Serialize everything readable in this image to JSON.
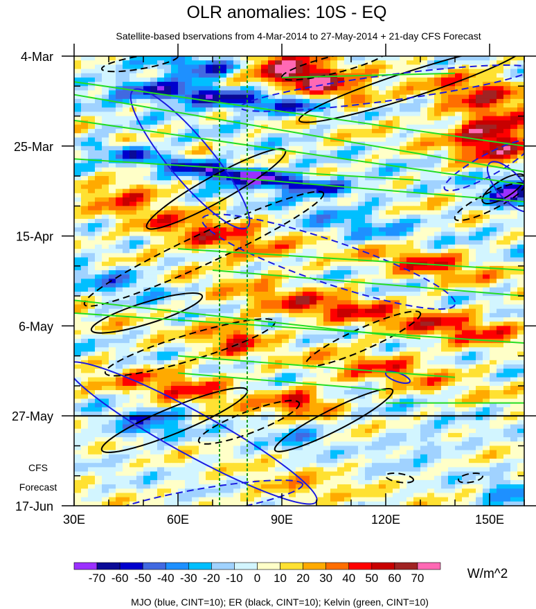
{
  "chart_data": {
    "type": "heatmap",
    "title": "OLR anomalies: 10S - EQ",
    "subtitle": "Satellite-based bservations from 4-Mar-2014 to 27-May-2014 + 21-day CFS Forecast",
    "x_range_deg_east": [
      30,
      160
    ],
    "x_ticks": [
      {
        "value": 30,
        "label": "30E"
      },
      {
        "value": 60,
        "label": "60E"
      },
      {
        "value": 90,
        "label": "90E"
      },
      {
        "value": 120,
        "label": "120E"
      },
      {
        "value": 150,
        "label": "150E"
      }
    ],
    "y_range_days": [
      0,
      105
    ],
    "y_ticks": [
      {
        "value": 0,
        "label": "4-Mar"
      },
      {
        "value": 21,
        "label": "25-Mar"
      },
      {
        "value": 42,
        "label": "15-Apr"
      },
      {
        "value": 63,
        "label": "6-May"
      },
      {
        "value": 84,
        "label": "27-May"
      },
      {
        "value": 105,
        "label": "17-Jun"
      }
    ],
    "forecast_start_day": 84,
    "forecast_label": [
      "CFS",
      "Forecast"
    ],
    "reference_longitudes": [
      72,
      80
    ],
    "levels": [
      -70,
      -60,
      -50,
      -40,
      -30,
      -20,
      -10,
      0,
      10,
      20,
      30,
      40,
      50,
      60,
      70
    ],
    "level_labels": [
      "-70",
      "-60",
      "-50",
      "-40",
      "-30",
      "-20",
      "-10",
      "0",
      "10",
      "20",
      "30",
      "40",
      "50",
      "60",
      "70"
    ],
    "colors": [
      "#9b30ff",
      "#0a0a96",
      "#0000cd",
      "#4169e1",
      "#1e90ff",
      "#00bfff",
      "#a0d2ff",
      "#d2f5ff",
      "#ffffc8",
      "#ffe132",
      "#ffaa00",
      "#ff6e00",
      "#ff0000",
      "#c80000",
      "#a02323",
      "#ff69b4"
    ],
    "units": "W/m^2",
    "footer": "MJO (blue, CINT=10); ER (black, CINT=10); Kelvin (green, CINT=10)",
    "anomaly_blobs": [
      {
        "lon": 58,
        "day": 8,
        "amp": -65,
        "slon": 14,
        "sday": 2.2,
        "tilt": 4
      },
      {
        "lon": 88,
        "day": 11,
        "amp": -45,
        "slon": 12,
        "sday": 2,
        "tilt": 4
      },
      {
        "lon": 75,
        "day": 27,
        "amp": -75,
        "slon": 10,
        "sday": 2.2,
        "tilt": 5
      },
      {
        "lon": 45,
        "day": 22,
        "amp": -45,
        "slon": 8,
        "sday": 2,
        "tilt": 4
      },
      {
        "lon": 100,
        "day": 30,
        "amp": -40,
        "slon": 12,
        "sday": 2,
        "tilt": 4
      },
      {
        "lon": 155,
        "day": 32,
        "amp": -55,
        "slon": 6,
        "sday": 3,
        "tilt": 0
      },
      {
        "lon": 70,
        "day": 2,
        "amp": -50,
        "slon": 10,
        "sday": 2,
        "tilt": 0
      },
      {
        "lon": 100,
        "day": 6,
        "amp": 65,
        "slon": 8,
        "sday": 3.5,
        "tilt": 2
      },
      {
        "lon": 85,
        "day": 3,
        "amp": 45,
        "slon": 10,
        "sday": 3,
        "tilt": 0
      },
      {
        "lon": 150,
        "day": 18,
        "amp": 70,
        "slon": 8,
        "sday": 4,
        "tilt": 0
      },
      {
        "lon": 145,
        "day": 8,
        "amp": 35,
        "slon": 10,
        "sday": 4,
        "tilt": 0
      },
      {
        "lon": 68,
        "day": 42,
        "amp": 45,
        "slon": 12,
        "sday": 4,
        "tilt": 3
      },
      {
        "lon": 45,
        "day": 31,
        "amp": 30,
        "slon": 8,
        "sday": 3,
        "tilt": 0
      },
      {
        "lon": 100,
        "day": 58,
        "amp": 40,
        "slon": 14,
        "sday": 3,
        "tilt": 3
      },
      {
        "lon": 130,
        "day": 48,
        "amp": 35,
        "slon": 10,
        "sday": 3,
        "tilt": 2
      },
      {
        "lon": 140,
        "day": 63,
        "amp": 35,
        "slon": 12,
        "sday": 3,
        "tilt": 2
      },
      {
        "lon": 75,
        "day": 65,
        "amp": 40,
        "slon": 6,
        "sday": 3,
        "tilt": 0
      },
      {
        "lon": 95,
        "day": 80,
        "amp": 55,
        "slon": 6,
        "sday": 2,
        "tilt": 0
      },
      {
        "lon": 60,
        "day": 76,
        "amp": 35,
        "slon": 12,
        "sday": 3,
        "tilt": 2
      },
      {
        "lon": 120,
        "day": 72,
        "amp": 30,
        "slon": 12,
        "sday": 3,
        "tilt": 2
      },
      {
        "lon": 50,
        "day": 86,
        "amp": -45,
        "slon": 8,
        "sday": 2.5,
        "tilt": 0
      },
      {
        "lon": 95,
        "day": 88,
        "amp": -35,
        "slon": 6,
        "sday": 2,
        "tilt": 0
      },
      {
        "lon": 130,
        "day": 90,
        "amp": -30,
        "slon": 8,
        "sday": 2,
        "tilt": 0
      },
      {
        "lon": 92,
        "day": 101,
        "amp": 25,
        "slon": 10,
        "sday": 3,
        "tilt": 0
      },
      {
        "lon": 155,
        "day": 103,
        "amp": -40,
        "slon": 5,
        "sday": 3,
        "tilt": 0
      },
      {
        "lon": 40,
        "day": 51,
        "amp": -30,
        "slon": 8,
        "sday": 3,
        "tilt": 2
      },
      {
        "lon": 110,
        "day": 40,
        "amp": -25,
        "slon": 10,
        "sday": 3,
        "tilt": 2
      }
    ],
    "contours": {
      "er_solid": [
        [
          95,
          15,
          160,
          -2,
          3
        ],
        [
          51,
          40,
          91,
          22,
          3
        ],
        [
          35,
          64,
          67,
          56,
          2.5
        ],
        [
          38,
          92,
          80,
          78,
          3
        ],
        [
          88,
          92,
          122,
          78,
          2.5
        ],
        [
          148,
          34,
          160,
          28,
          2
        ]
      ],
      "er_dashed": [
        [
          33,
          58,
          102,
          32,
          3.5
        ],
        [
          39,
          74,
          88,
          62,
          3
        ],
        [
          97,
          72,
          130,
          60,
          2.5
        ],
        [
          66,
          90,
          95,
          81,
          2.5
        ],
        [
          140,
          38,
          160,
          30,
          2
        ],
        [
          38,
          3,
          60,
          0,
          1.5
        ],
        [
          90,
          5,
          120,
          -1,
          2
        ],
        [
          120,
          98,
          128,
          99,
          1
        ],
        [
          141,
          99,
          148,
          98,
          1
        ]
      ],
      "mjo_solid": [
        [
          47,
          8,
          80,
          40,
          5
        ],
        [
          28,
          72,
          100,
          104,
          5
        ],
        [
          120,
          74,
          127,
          76,
          1
        ],
        [
          150,
          25,
          162,
          36,
          3
        ]
      ],
      "mjo_dashed": [
        [
          67,
          38,
          140,
          58,
          5
        ],
        [
          78,
          12,
          162,
          3,
          3
        ],
        [
          38,
          108,
          96,
          100,
          3
        ],
        [
          137,
          31,
          162,
          20,
          2.5
        ]
      ],
      "kelvin": [
        [
          30,
          6,
          160,
          21
        ],
        [
          30,
          9,
          160,
          27
        ],
        [
          30,
          15,
          160,
          30
        ],
        [
          30,
          24,
          130,
          29
        ],
        [
          70,
          28,
          160,
          34
        ],
        [
          60,
          45,
          160,
          50
        ],
        [
          70,
          50,
          160,
          56
        ],
        [
          30,
          57,
          130,
          66
        ],
        [
          30,
          60,
          160,
          67
        ],
        [
          60,
          70,
          140,
          75
        ],
        [
          60,
          74,
          120,
          78
        ],
        [
          120,
          81,
          160,
          81
        ],
        [
          90,
          5,
          140,
          4
        ]
      ]
    }
  }
}
